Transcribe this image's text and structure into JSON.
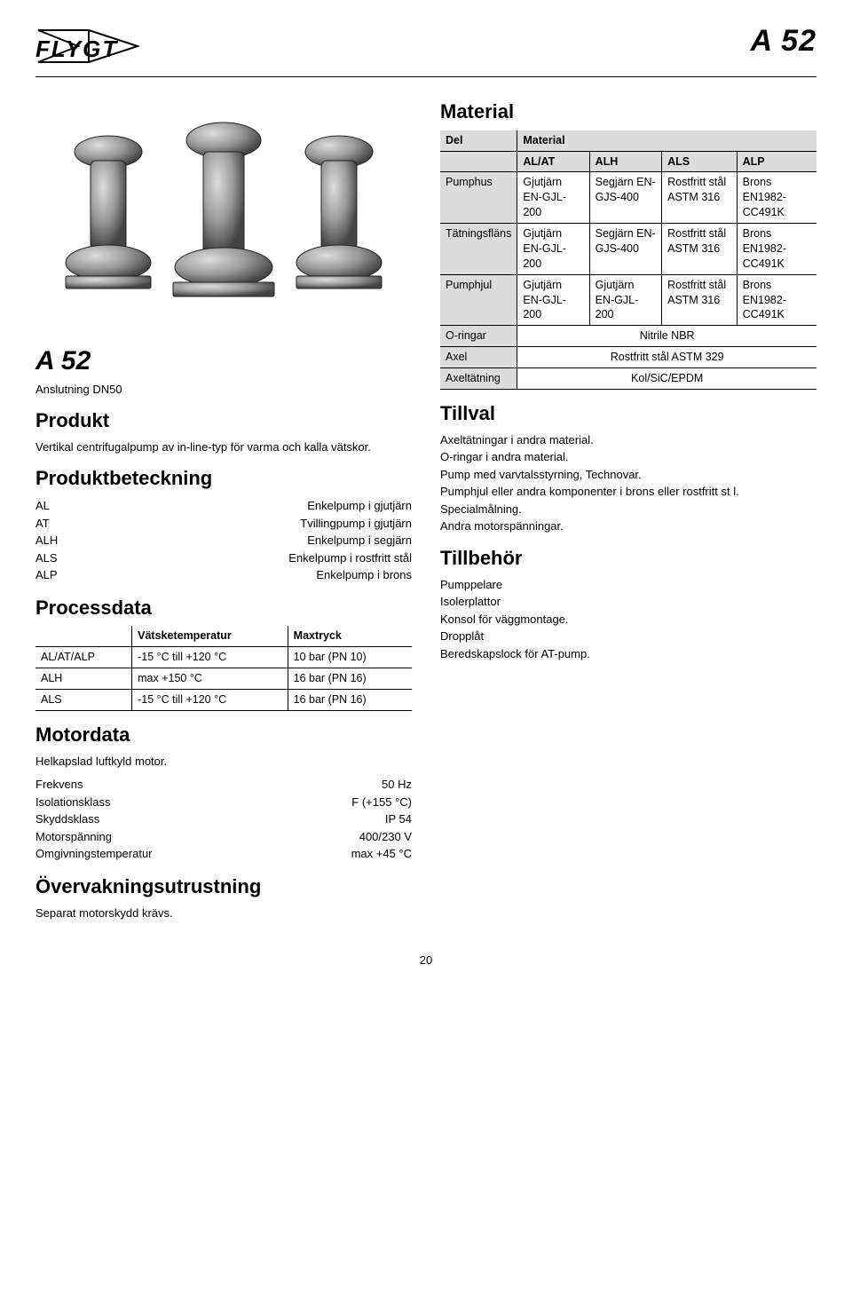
{
  "header": {
    "logo_text": "FLYGT",
    "page_title": "A 52"
  },
  "left": {
    "model_heading": "A 52",
    "connection": "Anslutning DN50",
    "product_heading": "Produkt",
    "product_desc": "Vertikal centrifugalpump av in-line-typ för varma och kalla vätskor.",
    "designation_heading": "Produktbeteckning",
    "designation_rows": [
      {
        "key": "AL",
        "val": "Enkelpump i gjutjärn"
      },
      {
        "key": "AT",
        "val": "Tvillingpump i gjutjärn"
      },
      {
        "key": "ALH",
        "val": "Enkelpump i segjärn"
      },
      {
        "key": "ALS",
        "val": "Enkelpump i rostfritt stål"
      },
      {
        "key": "ALP",
        "val": "Enkelpump i brons"
      }
    ],
    "processdata_heading": "Processdata",
    "process_table": {
      "columns": [
        "",
        "Vätsketemperatur",
        "Maxtryck"
      ],
      "rows": [
        [
          "AL/AT/ALP",
          "-15 °C till +120 °C",
          "10 bar (PN 10)"
        ],
        [
          "ALH",
          "max +150 °C",
          "16 bar (PN 16)"
        ],
        [
          "ALS",
          "-15 °C till +120 °C",
          "16 bar (PN 16)"
        ]
      ]
    },
    "motordata_heading": "Motordata",
    "motordata_intro": "Helkapslad luftkyld motor.",
    "motordata_rows": [
      {
        "key": "Frekvens",
        "val": "50 Hz"
      },
      {
        "key": "Isolationsklass",
        "val": "F (+155 °C)"
      },
      {
        "key": "Skyddsklass",
        "val": "IP 54"
      },
      {
        "key": "Motorspänning",
        "val": "400/230 V"
      },
      {
        "key": "Omgivningstemperatur",
        "val": "max +45 °C"
      }
    ],
    "monitoring_heading": "Övervakningsutrustning",
    "monitoring_text": "Separat motorskydd krävs."
  },
  "right": {
    "material_heading": "Material",
    "material_table": {
      "header1": [
        "Del",
        "Material",
        "",
        "",
        ""
      ],
      "header2": [
        "",
        "AL/AT",
        "ALH",
        "ALS",
        "ALP"
      ],
      "rows": [
        [
          "Pumphus",
          "Gjutjärn EN-GJL-200",
          "Segjärn EN-GJS-400",
          "Rostfritt stål ASTM 316",
          "Brons EN1982-CC491K"
        ],
        [
          "Tätningsfläns",
          "Gjutjärn EN-GJL-200",
          "Segjärn EN-GJS-400",
          "Rostfritt stål ASTM 316",
          "Brons EN1982-CC491K"
        ],
        [
          "Pumphjul",
          "Gjutjärn EN-GJL-200",
          "Gjutjärn EN-GJL-200",
          "Rostfritt stål ASTM 316",
          "Brons EN1982-CC491K"
        ]
      ],
      "span_rows": [
        [
          "O-ringar",
          "Nitrile NBR"
        ],
        [
          "Axel",
          "Rostfritt stål ASTM 329"
        ],
        [
          "Axeltätning",
          "Kol/SiC/EPDM"
        ]
      ]
    },
    "options_heading": "Tillval",
    "options_list": [
      "Axeltätningar i andra material.",
      "O-ringar i andra material.",
      "Pump med varvtalsstyrning, Technovar.",
      "Pumphjul eller andra komponenter i brons eller rostfritt st l.",
      "Specialmålning.",
      "Andra motorspänningar."
    ],
    "accessories_heading": "Tillbehör",
    "accessories_list": [
      "Pumppelare",
      "Isolerplattor",
      "Konsol för väggmontage.",
      "Dropplåt",
      "Beredskapslock för AT-pump."
    ]
  },
  "page_number": "20"
}
